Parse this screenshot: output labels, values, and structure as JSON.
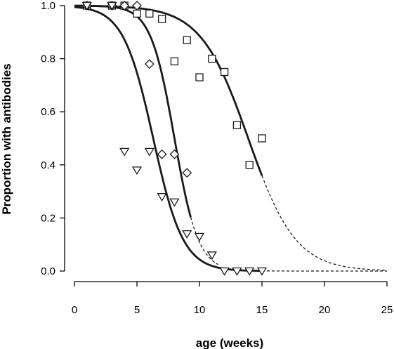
{
  "chart_data": {
    "type": "scatter",
    "xlabel": "age (weeks)",
    "ylabel": "Proportion with antibodies",
    "xlim": [
      0,
      25
    ],
    "ylim": [
      0,
      1
    ],
    "x_ticks": [
      0,
      5,
      10,
      15,
      20,
      25
    ],
    "y_ticks": [
      "0.0",
      "0.2",
      "0.4",
      "0.6",
      "0.8",
      "1.0"
    ],
    "grid": false,
    "legend": "none",
    "series": [
      {
        "marker": "square",
        "points": [
          {
            "x": 1,
            "y": 1.0
          },
          {
            "x": 3,
            "y": 1.0
          },
          {
            "x": 4,
            "y": 1.0
          },
          {
            "x": 5,
            "y": 0.97
          },
          {
            "x": 6,
            "y": 0.97
          },
          {
            "x": 7,
            "y": 0.95
          },
          {
            "x": 8,
            "y": 0.79
          },
          {
            "x": 9,
            "y": 0.87
          },
          {
            "x": 10,
            "y": 0.73
          },
          {
            "x": 11,
            "y": 0.8
          },
          {
            "x": 12,
            "y": 0.75
          },
          {
            "x": 13,
            "y": 0.55
          },
          {
            "x": 14,
            "y": 0.4
          },
          {
            "x": 15,
            "y": 0.5
          }
        ],
        "fit": {
          "model": "logistic",
          "midpoint": 13.9,
          "scale": 1.9,
          "solid_until": 15,
          "dashed_until": 25
        }
      },
      {
        "marker": "diamond",
        "points": [
          {
            "x": 1,
            "y": 1.0
          },
          {
            "x": 3,
            "y": 1.0
          },
          {
            "x": 4,
            "y": 1.0
          },
          {
            "x": 5,
            "y": 1.0
          },
          {
            "x": 6,
            "y": 0.78
          },
          {
            "x": 7,
            "y": 0.44
          },
          {
            "x": 8,
            "y": 0.44
          },
          {
            "x": 9,
            "y": 0.37
          }
        ],
        "fit": {
          "model": "logistic",
          "midpoint": 8.0,
          "scale": 0.95,
          "solid_until": 9.3,
          "dashed_until": 11.5
        }
      },
      {
        "marker": "triangle-down",
        "points": [
          {
            "x": 1,
            "y": 1.0
          },
          {
            "x": 3,
            "y": 1.0
          },
          {
            "x": 4,
            "y": 0.45
          },
          {
            "x": 5,
            "y": 0.38
          },
          {
            "x": 6,
            "y": 0.45
          },
          {
            "x": 7,
            "y": 0.28
          },
          {
            "x": 8,
            "y": 0.26
          },
          {
            "x": 9,
            "y": 0.14
          },
          {
            "x": 10,
            "y": 0.13
          },
          {
            "x": 11,
            "y": 0.06
          },
          {
            "x": 12,
            "y": 0.0
          },
          {
            "x": 13,
            "y": 0.0
          },
          {
            "x": 14,
            "y": 0.0
          },
          {
            "x": 15,
            "y": 0.0
          }
        ],
        "fit": {
          "model": "logistic",
          "midpoint": 6.3,
          "scale": 1.2,
          "solid_until": 15,
          "dashed_until": 25
        }
      }
    ]
  }
}
